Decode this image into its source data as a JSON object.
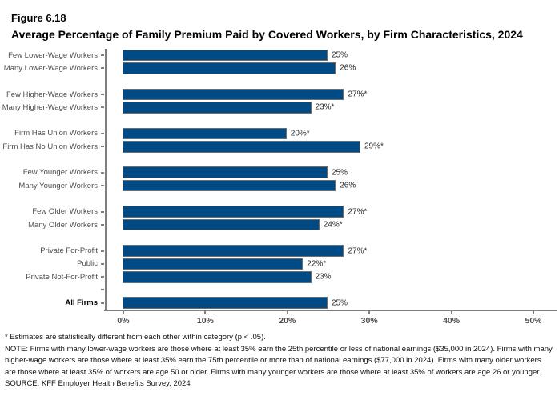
{
  "figure": {
    "number": "Figure 6.18",
    "title": "Average Percentage of Family Premium Paid by Covered Workers, by Firm Characteristics, 2024"
  },
  "chart_data": {
    "type": "bar",
    "orientation": "horizontal",
    "title": "Average Percentage of Family Premium Paid by Covered Workers, by Firm Characteristics, 2024",
    "xlim": [
      0,
      50
    ],
    "xticks": [
      {
        "value": 0,
        "label": "0%"
      },
      {
        "value": 10,
        "label": "10%"
      },
      {
        "value": 20,
        "label": "20%"
      },
      {
        "value": 30,
        "label": "30%"
      },
      {
        "value": 40,
        "label": "40%"
      },
      {
        "value": 50,
        "label": "50%"
      }
    ],
    "bar_color": "#004a86",
    "bar_border_color": "#6e6e6e",
    "grid": false,
    "legend": "none",
    "groups": [
      {
        "category": "lower-wage-workers",
        "rows": [
          {
            "label": "Few Lower-Wage Workers",
            "value": 25,
            "value_label": "25%"
          },
          {
            "label": "Many Lower-Wage Workers",
            "value": 26,
            "value_label": "26%"
          }
        ]
      },
      {
        "category": "higher-wage-workers",
        "rows": [
          {
            "label": "Few Higher-Wage Workers",
            "value": 27,
            "value_label": "27%*"
          },
          {
            "label": "Many Higher-Wage Workers",
            "value": 23,
            "value_label": "23%*"
          }
        ]
      },
      {
        "category": "union-workers",
        "rows": [
          {
            "label": "Firm Has Union Workers",
            "value": 20,
            "value_label": "20%*"
          },
          {
            "label": "Firm Has No Union Workers",
            "value": 29,
            "value_label": "29%*"
          }
        ]
      },
      {
        "category": "younger-workers",
        "rows": [
          {
            "label": "Few Younger Workers",
            "value": 25,
            "value_label": "25%"
          },
          {
            "label": "Many Younger Workers",
            "value": 26,
            "value_label": "26%"
          }
        ]
      },
      {
        "category": "older-workers",
        "rows": [
          {
            "label": "Few Older Workers",
            "value": 27,
            "value_label": "27%*"
          },
          {
            "label": "Many Older Workers",
            "value": 24,
            "value_label": "24%*"
          }
        ]
      },
      {
        "category": "ownership",
        "rows": [
          {
            "label": "Private For-Profit",
            "value": 27,
            "value_label": "27%*"
          },
          {
            "label": "Public",
            "value": 22,
            "value_label": "22%*"
          },
          {
            "label": "Private Not-For-Profit",
            "value": 23,
            "value_label": "23%"
          }
        ]
      },
      {
        "category": "all-firms",
        "pre_gap_tick": true,
        "rows": [
          {
            "label": "All Firms",
            "value": 25,
            "value_label": "25%",
            "emphasis": true
          }
        ]
      }
    ]
  },
  "footnotes": {
    "significance": "* Estimates are statistically different from each other within category (p < .05).",
    "note": "NOTE: Firms with many lower-wage workers are those where at least 35% earn the 25th percentile or less of national earnings ($35,000 in 2024). Firms with many higher-wage workers are those where at least 35% earn the 75th percentile or more than of national earnings ($77,000 in 2024). Firms with many older workers are those where at least 35% of workers are age 50 or older. Firms with many younger workers are those where at least 35% of workers are age 26 or younger.",
    "source": "SOURCE: KFF Employer Health Benefits Survey, 2024"
  }
}
